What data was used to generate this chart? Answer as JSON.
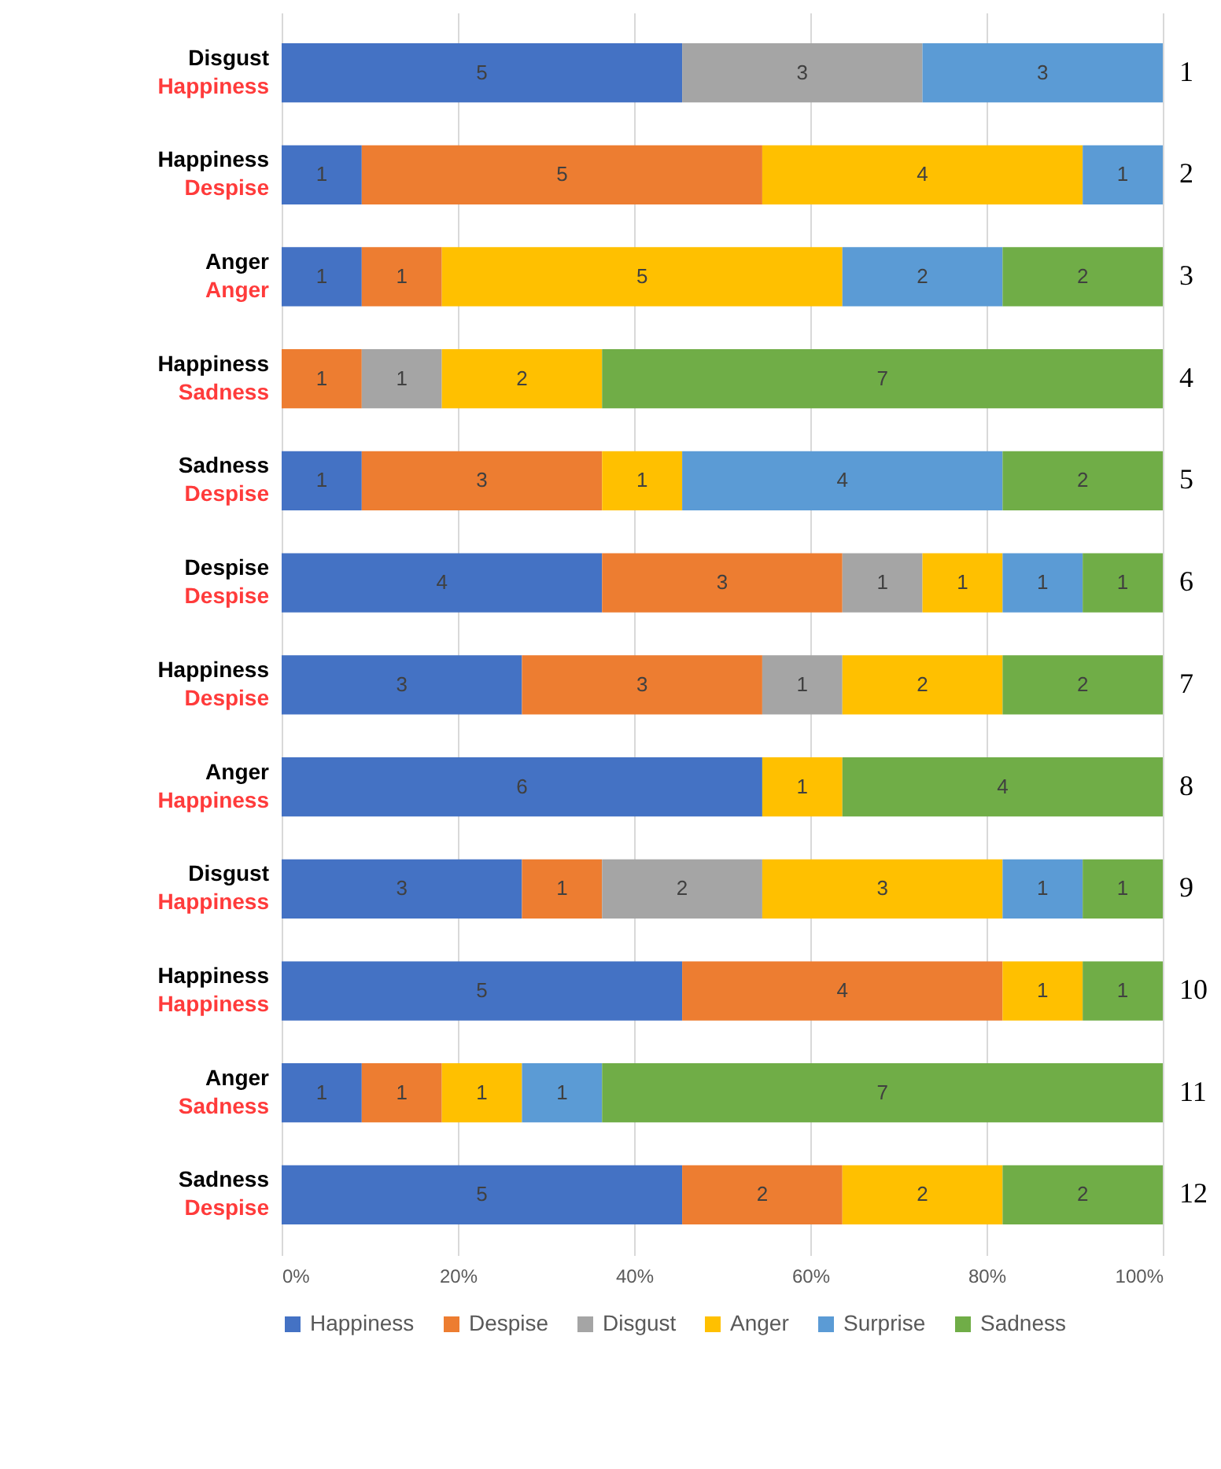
{
  "chart_data": {
    "type": "bar",
    "orientation": "horizontal",
    "stacked": true,
    "data_labels": true,
    "grid": "x",
    "legend": "bottom",
    "categories": [
      "1",
      "2",
      "3",
      "4",
      "5",
      "6",
      "7",
      "8",
      "9",
      "10",
      "11",
      "12"
    ],
    "series": [
      {
        "name": "Happiness",
        "color": "#4472c4",
        "values": [
          5,
          1,
          1,
          null,
          1,
          4,
          3,
          6,
          3,
          5,
          1,
          5
        ]
      },
      {
        "name": "Despise",
        "color": "#ed7d31",
        "values": [
          null,
          5,
          1,
          1,
          3,
          3,
          3,
          null,
          1,
          4,
          1,
          2
        ]
      },
      {
        "name": "Disgust",
        "color": "#a5a5a5",
        "values": [
          3,
          null,
          null,
          1,
          null,
          1,
          1,
          null,
          2,
          null,
          null,
          null
        ]
      },
      {
        "name": "Anger",
        "color": "#ffc000",
        "values": [
          null,
          4,
          5,
          2,
          1,
          1,
          2,
          1,
          3,
          1,
          1,
          2
        ]
      },
      {
        "name": "Surprise",
        "color": "#5b9bd5",
        "values": [
          3,
          1,
          2,
          null,
          4,
          1,
          null,
          null,
          1,
          null,
          1,
          null
        ]
      },
      {
        "name": "Sadness",
        "color": "#70ad47",
        "values": [
          null,
          null,
          2,
          7,
          2,
          1,
          2,
          4,
          1,
          1,
          7,
          2
        ]
      }
    ],
    "xlim": [
      0,
      11
    ],
    "x2lim": [
      0,
      100
    ],
    "x2ticks": [
      {
        "value": 0,
        "label": "0%"
      },
      {
        "value": 20,
        "label": "20%"
      },
      {
        "value": 40,
        "label": "40%"
      },
      {
        "value": 60,
        "label": "60%"
      },
      {
        "value": 80,
        "label": "80%"
      },
      {
        "value": 100,
        "label": "100%"
      }
    ],
    "annotations": [
      "Disgust",
      "Happiness",
      "Happiness",
      "Despise",
      "Anger",
      "Anger",
      "Happiness",
      "Sadness",
      "Sadness",
      "Despise",
      "Despise",
      "Despise",
      "Happiness",
      "Despise",
      "Anger",
      "Happiness",
      "Disgust",
      "Happiness",
      "Happiness",
      "Happiness",
      "Anger",
      "Sadness",
      "Sadness",
      "Despise"
    ]
  }
}
